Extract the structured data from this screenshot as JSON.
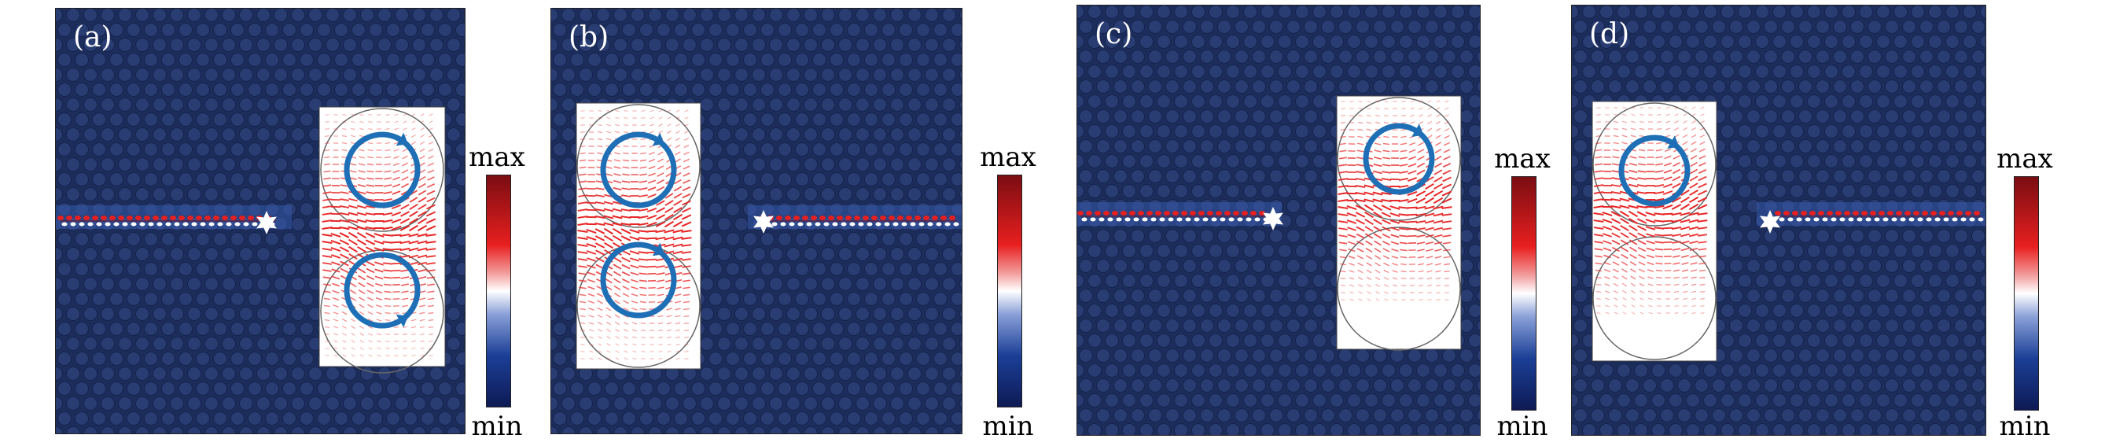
{
  "panels": [
    {
      "label": "(a)"
    },
    {
      "label": "(b)"
    },
    {
      "label": "(c)"
    },
    {
      "label": "(d)"
    }
  ],
  "colorbar": {
    "max": "max",
    "min": "min"
  },
  "colors": {
    "background": "#1c2d5c",
    "vortex": "#1e6fb5",
    "arrow": "#e82424",
    "colormap": [
      "#ffffff",
      "#e81f1f",
      "#7a0d12",
      "#1b3f96",
      "#0e1a55"
    ]
  },
  "icons": {
    "source": "star-icon",
    "vortex": "circulation-arrow-icon"
  }
}
